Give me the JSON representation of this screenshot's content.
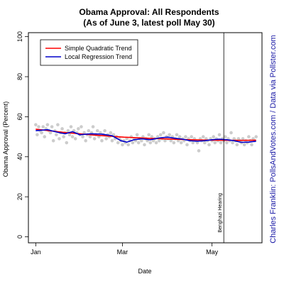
{
  "chart_data": {
    "type": "scatter",
    "title": "Obama Approval: All Respondents",
    "subtitle": "(As of June 3, latest poll May 30)",
    "xlabel": "Date",
    "ylabel": "Obama Approval (Percent)",
    "credit": "Charles Franklin: PollsAndVotes.com / Data via Pollster.com",
    "x_ticks": [
      {
        "day": 0,
        "label": "Jan"
      },
      {
        "day": 59,
        "label": "Mar"
      },
      {
        "day": 120,
        "label": "May"
      }
    ],
    "xlim": [
      -5,
      154
    ],
    "ylim": [
      -3,
      102
    ],
    "y_ticks": [
      0,
      20,
      40,
      60,
      80,
      100
    ],
    "grid": false,
    "legend_position": "top-left",
    "annotation": {
      "label": "Benghazi Hearing",
      "day": 128
    },
    "colors": {
      "points": "#cccccc",
      "quadratic": "#ff0000",
      "local": "#0000cc",
      "credit": "#1a1aa6"
    },
    "series": [
      {
        "name": "Simple Quadratic Trend",
        "color": "#ff0000",
        "x": [
          0,
          20,
          40,
          60,
          80,
          100,
          120,
          140,
          150
        ],
        "y": [
          53.8,
          52.1,
          50.8,
          49.8,
          49.1,
          48.6,
          48.3,
          48.2,
          48.3
        ]
      },
      {
        "name": "Local Regression Trend",
        "color": "#0000cc",
        "x": [
          0,
          8,
          15,
          20,
          25,
          30,
          38,
          45,
          52,
          58,
          62,
          67,
          72,
          78,
          85,
          90,
          95,
          100,
          105,
          110,
          115,
          120,
          125,
          130,
          135,
          140,
          145,
          150
        ],
        "y": [
          53.0,
          53.5,
          52.2,
          51.5,
          52.5,
          51.0,
          51.5,
          51.3,
          50.5,
          48.0,
          47.3,
          48.5,
          49.0,
          48.5,
          49.5,
          49.8,
          49.2,
          48.8,
          48.0,
          47.8,
          48.0,
          48.5,
          48.8,
          48.5,
          48.0,
          47.2,
          47.3,
          47.8
        ]
      }
    ],
    "points": [
      [
        0,
        56
      ],
      [
        1,
        51
      ],
      [
        2,
        55
      ],
      [
        3,
        53
      ],
      [
        4,
        52
      ],
      [
        5,
        55
      ],
      [
        6,
        50
      ],
      [
        7,
        54
      ],
      [
        8,
        56
      ],
      [
        9,
        53
      ],
      [
        10,
        52
      ],
      [
        11,
        55
      ],
      [
        12,
        48
      ],
      [
        13,
        53
      ],
      [
        14,
        51
      ],
      [
        15,
        56
      ],
      [
        16,
        49
      ],
      [
        17,
        52
      ],
      [
        18,
        54
      ],
      [
        19,
        50
      ],
      [
        20,
        52
      ],
      [
        21,
        47
      ],
      [
        22,
        53
      ],
      [
        23,
        51
      ],
      [
        24,
        55
      ],
      [
        25,
        50
      ],
      [
        26,
        53
      ],
      [
        27,
        49
      ],
      [
        28,
        52
      ],
      [
        29,
        54
      ],
      [
        30,
        51
      ],
      [
        31,
        55
      ],
      [
        32,
        50
      ],
      [
        33,
        52
      ],
      [
        34,
        48
      ],
      [
        35,
        51
      ],
      [
        36,
        53
      ],
      [
        37,
        50
      ],
      [
        38,
        52
      ],
      [
        39,
        55
      ],
      [
        40,
        49
      ],
      [
        41,
        51
      ],
      [
        42,
        53
      ],
      [
        43,
        50
      ],
      [
        44,
        52
      ],
      [
        45,
        48
      ],
      [
        46,
        51
      ],
      [
        47,
        53
      ],
      [
        48,
        49
      ],
      [
        49,
        51
      ],
      [
        50,
        50
      ],
      [
        51,
        52
      ],
      [
        52,
        48
      ],
      [
        53,
        51
      ],
      [
        54,
        49
      ],
      [
        55,
        50
      ],
      [
        56,
        47
      ],
      [
        57,
        49
      ],
      [
        58,
        48
      ],
      [
        59,
        46
      ],
      [
        60,
        48
      ],
      [
        61,
        47
      ],
      [
        62,
        49
      ],
      [
        63,
        46
      ],
      [
        64,
        48
      ],
      [
        65,
        50
      ],
      [
        66,
        47
      ],
      [
        67,
        49
      ],
      [
        68,
        48
      ],
      [
        69,
        51
      ],
      [
        70,
        47
      ],
      [
        71,
        49
      ],
      [
        72,
        48
      ],
      [
        73,
        50
      ],
      [
        74,
        46
      ],
      [
        75,
        49
      ],
      [
        76,
        48
      ],
      [
        77,
        51
      ],
      [
        78,
        47
      ],
      [
        79,
        50
      ],
      [
        80,
        48
      ],
      [
        81,
        49
      ],
      [
        82,
        47
      ],
      [
        83,
        50
      ],
      [
        84,
        48
      ],
      [
        85,
        51
      ],
      [
        86,
        49
      ],
      [
        87,
        52
      ],
      [
        88,
        48
      ],
      [
        89,
        50
      ],
      [
        90,
        49
      ],
      [
        91,
        51
      ],
      [
        92,
        48
      ],
      [
        93,
        50
      ],
      [
        94,
        47
      ],
      [
        95,
        49
      ],
      [
        96,
        51
      ],
      [
        97,
        48
      ],
      [
        98,
        50
      ],
      [
        99,
        47
      ],
      [
        100,
        49
      ],
      [
        101,
        48
      ],
      [
        102,
        50
      ],
      [
        103,
        46
      ],
      [
        104,
        49
      ],
      [
        105,
        48
      ],
      [
        106,
        50
      ],
      [
        107,
        47
      ],
      [
        108,
        49
      ],
      [
        109,
        48
      ],
      [
        110,
        47
      ],
      [
        111,
        43
      ],
      [
        112,
        49
      ],
      [
        113,
        48
      ],
      [
        114,
        50
      ],
      [
        115,
        47
      ],
      [
        116,
        49
      ],
      [
        117,
        48
      ],
      [
        118,
        46
      ],
      [
        119,
        49
      ],
      [
        120,
        48
      ],
      [
        121,
        50
      ],
      [
        122,
        47
      ],
      [
        123,
        49
      ],
      [
        124,
        48
      ],
      [
        125,
        51
      ],
      [
        126,
        47
      ],
      [
        127,
        49
      ],
      [
        128,
        48
      ],
      [
        129,
        50
      ],
      [
        130,
        47
      ],
      [
        131,
        49
      ],
      [
        132,
        48
      ],
      [
        133,
        52
      ],
      [
        134,
        47
      ],
      [
        135,
        49
      ],
      [
        136,
        48
      ],
      [
        137,
        46
      ],
      [
        138,
        49
      ],
      [
        139,
        48
      ],
      [
        140,
        47
      ],
      [
        141,
        49
      ],
      [
        142,
        46
      ],
      [
        143,
        48
      ],
      [
        144,
        47
      ],
      [
        145,
        50
      ],
      [
        146,
        48
      ],
      [
        147,
        46
      ],
      [
        148,
        49
      ],
      [
        149,
        48
      ],
      [
        150,
        50
      ]
    ]
  }
}
